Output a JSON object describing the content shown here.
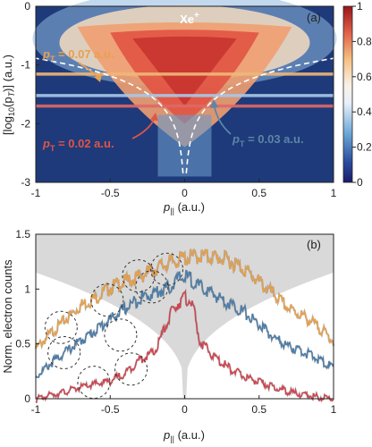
{
  "chart_data": [
    {
      "id": "a",
      "type": "heatmap",
      "panel_label": "(a)",
      "title": "Xe",
      "title_superscript": "+",
      "xlabel": "p",
      "xlabel_subscript": "||",
      "xlabel_unit": " (a.u.)",
      "ylabel": "[log",
      "ylabel_sub": "10",
      "ylabel_mid": "(p",
      "ylabel_sub2": "T",
      "ylabel_end": ")] (a.u.)",
      "xlim": [
        -1,
        1
      ],
      "ylim": [
        -3,
        0
      ],
      "xticks": [
        -1,
        -0.5,
        0,
        0.5,
        1
      ],
      "yticks": [
        0,
        -1,
        -2,
        -3
      ],
      "xtick_labels": [
        "-1",
        "-0.5",
        "0",
        "0.5",
        "1"
      ],
      "ytick_labels": [
        "0",
        "-1",
        "-2",
        "-3"
      ],
      "colorbar": {
        "range": [
          0,
          1
        ],
        "ticks": [
          0,
          0.2,
          0.4,
          0.6,
          0.8,
          1
        ],
        "tick_labels": [
          "0",
          "0.2",
          "0.4",
          "0.6",
          "0.8",
          "1"
        ]
      },
      "cut_lines": [
        {
          "pT": 0.07,
          "log_pT": -1.155,
          "color": "#f0b878"
        },
        {
          "pT": 0.03,
          "log_pT": -1.52,
          "color": "#a9c8e8"
        },
        {
          "pT": 0.02,
          "log_pT": -1.7,
          "color": "#e06868"
        }
      ],
      "annotations": [
        {
          "label": "p",
          "sub": "T",
          "text": " = 0.07 a.u.",
          "color": "#e8a050"
        },
        {
          "label": "p",
          "sub": "T",
          "text": " = 0.02 a.u.",
          "color": "#e05548"
        },
        {
          "label": "p",
          "sub": "T",
          "text": " = 0.03 a.u.",
          "color": "#5a86a8"
        }
      ]
    },
    {
      "id": "b",
      "type": "line",
      "panel_label": "(b)",
      "xlabel": "p",
      "xlabel_subscript": "||",
      "xlabel_unit": " (a.u.)",
      "ylabel": "Norm. electron counts",
      "xlim": [
        -1,
        1
      ],
      "ylim": [
        0,
        1.5
      ],
      "xticks": [
        -1,
        -0.5,
        0,
        0.5,
        1
      ],
      "yticks": [
        0,
        0.5,
        1,
        1.5
      ],
      "xtick_labels": [
        "-1",
        "-0.5",
        "0",
        "0.5",
        "1"
      ],
      "ytick_labels": [
        "0",
        "0.5",
        "1",
        "1.5"
      ],
      "grey_region": true,
      "x": [
        -1.0,
        -0.9,
        -0.8,
        -0.7,
        -0.6,
        -0.5,
        -0.4,
        -0.3,
        -0.2,
        -0.1,
        -0.05,
        0.0,
        0.05,
        0.1,
        0.2,
        0.3,
        0.4,
        0.5,
        0.6,
        0.7,
        0.8,
        0.9,
        1.0
      ],
      "series": [
        {
          "color": "#e8a04a",
          "values": [
            0.48,
            0.62,
            0.75,
            0.88,
            0.95,
            1.05,
            1.1,
            1.15,
            1.22,
            1.28,
            1.3,
            1.32,
            1.33,
            1.34,
            1.33,
            1.3,
            1.22,
            1.1,
            0.98,
            0.85,
            0.78,
            0.68,
            0.55
          ]
        },
        {
          "color": "#4a7ca8",
          "values": [
            0.22,
            0.34,
            0.45,
            0.55,
            0.65,
            0.75,
            0.85,
            0.95,
            1.0,
            1.05,
            1.12,
            1.15,
            1.12,
            1.05,
            0.98,
            0.9,
            0.82,
            0.7,
            0.58,
            0.5,
            0.45,
            0.38,
            0.3
          ]
        },
        {
          "color": "#d04450",
          "values": [
            0.01,
            0.05,
            0.08,
            0.12,
            0.15,
            0.18,
            0.25,
            0.38,
            0.45,
            0.78,
            0.9,
            0.95,
            0.92,
            0.55,
            0.4,
            0.3,
            0.22,
            0.17,
            0.12,
            0.08,
            0.05,
            0.03,
            0.02
          ]
        }
      ],
      "circles": [
        {
          "x": -0.83,
          "y": 0.65
        },
        {
          "x": -0.81,
          "y": 0.42
        },
        {
          "x": -0.61,
          "y": 0.15
        },
        {
          "x": -0.52,
          "y": 0.9
        },
        {
          "x": -0.43,
          "y": 0.58
        },
        {
          "x": -0.36,
          "y": 0.27
        },
        {
          "x": -0.31,
          "y": 1.12
        },
        {
          "x": -0.22,
          "y": 1.02
        },
        {
          "x": -0.12,
          "y": 1.18
        }
      ]
    }
  ]
}
